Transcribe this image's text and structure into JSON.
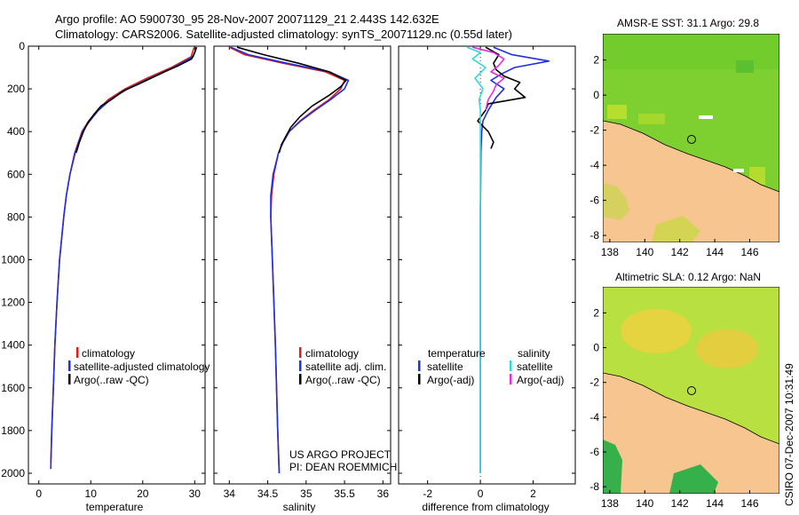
{
  "figure": {
    "title_line1": "Argo profile: AO 5900730_95 28-Nov-2007 20071129_21 2.443S 142.632E",
    "title_line2": "Climatology: CARS2006. Satellite-adjusted climatology: synTS_20071129.nc (0.55d later)",
    "project_line1": "US ARGO PROJECT",
    "project_line2": "PI: DEAN ROEMMICH",
    "stamp": "CSIRO 07-Dec-2007 10:31:49"
  },
  "colors": {
    "climatology": "#d42020",
    "satellite": "#2030e0",
    "argo": "#000000",
    "satellite_salinity": "#30d8d8",
    "argo_salinity_adj": "#e030e0",
    "land": "#f7c590",
    "sea_green": "#7ed030"
  },
  "chart_data": [
    {
      "type": "line",
      "name": "temperature-profile",
      "xlabel": "temperature",
      "xlim": [
        -2,
        32
      ],
      "xticks": [
        0,
        10,
        20,
        30
      ],
      "ylim": [
        0,
        2050
      ],
      "yticks": [
        0,
        200,
        400,
        600,
        800,
        1000,
        1200,
        1400,
        1600,
        1800,
        2000
      ],
      "y_reversed": true,
      "legend": [
        "climatology",
        "satellite-adjusted climatology",
        "Argo(..raw -QC)"
      ],
      "series": [
        {
          "name": "climatology",
          "depth": [
            5,
            50,
            100,
            150,
            200,
            250,
            300,
            350,
            400,
            500,
            600,
            700,
            800,
            1000,
            1200,
            1400,
            1600,
            1800,
            1950
          ],
          "values": [
            29.9,
            29.3,
            25.5,
            20.8,
            16.6,
            13.4,
            11.3,
            9.6,
            8.3,
            6.9,
            6.0,
            5.3,
            4.8,
            4.0,
            3.5,
            3.1,
            2.8,
            2.5,
            2.3
          ]
        },
        {
          "name": "satellite-adjusted climatology",
          "depth": [
            5,
            50,
            100,
            150,
            200,
            250,
            300,
            350,
            400,
            500,
            600,
            700,
            800,
            1000,
            1200,
            1400,
            1600,
            1800,
            1980
          ],
          "values": [
            30.4,
            29.7,
            26.0,
            21.4,
            17.1,
            13.8,
            11.5,
            9.8,
            8.4,
            7.0,
            6.0,
            5.3,
            4.8,
            4.0,
            3.5,
            3.1,
            2.8,
            2.5,
            2.3
          ]
        },
        {
          "name": "Argo(..raw -QC)",
          "depth": [
            5,
            30,
            60,
            90,
            120,
            150,
            180,
            210,
            250,
            280,
            320,
            360,
            400,
            450,
            500
          ],
          "values": [
            30.3,
            30.0,
            29.4,
            27.0,
            24.2,
            21.6,
            19.0,
            16.2,
            14.0,
            12.0,
            10.6,
            9.4,
            8.6,
            7.8,
            7.2
          ]
        }
      ]
    },
    {
      "type": "line",
      "name": "salinity-profile",
      "xlabel": "salinity",
      "xlim": [
        33.8,
        36.1
      ],
      "xticks": [
        34,
        34.5,
        35,
        35.5,
        36
      ],
      "ylim": [
        0,
        2050
      ],
      "y_reversed": true,
      "legend": [
        "climatology",
        "satellite adj. clim.",
        "Argo(..raw -QC)"
      ],
      "series": [
        {
          "name": "climatology",
          "depth": [
            5,
            40,
            80,
            120,
            160,
            200,
            250,
            300,
            350,
            400,
            450,
            500,
            600,
            700,
            800,
            1000,
            1400,
            1800,
            2000
          ],
          "values": [
            34.0,
            34.2,
            34.7,
            35.25,
            35.5,
            35.45,
            35.3,
            35.1,
            34.92,
            34.78,
            34.7,
            34.64,
            34.58,
            34.55,
            34.54,
            34.56,
            34.6,
            34.63,
            34.65
          ]
        },
        {
          "name": "satellite adj. clim.",
          "depth": [
            5,
            40,
            80,
            120,
            160,
            200,
            250,
            300,
            350,
            400,
            450,
            500,
            600,
            700,
            800,
            1000,
            1400,
            1800,
            2000
          ],
          "values": [
            34.02,
            34.25,
            34.75,
            35.3,
            35.55,
            35.5,
            35.32,
            35.12,
            34.93,
            34.78,
            34.7,
            34.64,
            34.57,
            34.54,
            34.54,
            34.56,
            34.6,
            34.63,
            34.65
          ]
        },
        {
          "name": "Argo(..raw -QC)",
          "depth": [
            5,
            40,
            80,
            120,
            160,
            190,
            230,
            280,
            330,
            380,
            420,
            460,
            500
          ],
          "values": [
            34.1,
            34.45,
            34.9,
            35.3,
            35.52,
            35.45,
            35.3,
            35.08,
            34.92,
            34.8,
            34.74,
            34.68,
            34.65
          ]
        }
      ]
    },
    {
      "type": "line",
      "name": "difference-profile",
      "xlabel": "difference from climatology",
      "xlim": [
        -3.1,
        3.6
      ],
      "xticks": [
        -2,
        0,
        2
      ],
      "ylim": [
        0,
        2050
      ],
      "y_reversed": true,
      "legend_left_title": "temperature",
      "legend_left": [
        "satellite",
        "Argo(-adj)"
      ],
      "legend_right_title": "salinity",
      "legend_right": [
        "satellite",
        "Argo(-adj)"
      ],
      "series": [
        {
          "name": "temperature satellite",
          "depth": [
            5,
            40,
            70,
            100,
            130,
            160,
            200,
            240,
            300,
            350,
            400,
            500,
            800,
            1200,
            1600,
            2000
          ],
          "values": [
            0.5,
            1.2,
            2.6,
            1.3,
            0.8,
            0.4,
            0.9,
            0.6,
            0.3,
            0.1,
            0.05,
            0.02,
            0.0,
            0.0,
            0.0,
            0.0
          ]
        },
        {
          "name": "temperature Argo(-adj)",
          "depth": [
            5,
            40,
            80,
            110,
            140,
            170,
            200,
            240,
            270,
            300,
            350,
            400,
            450,
            480
          ],
          "values": [
            0.2,
            0.7,
            0.5,
            0.6,
            0.9,
            1.5,
            1.3,
            1.7,
            0.3,
            0.2,
            -0.1,
            0.3,
            0.5,
            0.4
          ]
        },
        {
          "name": "salinity satellite",
          "depth": [
            5,
            30,
            60,
            100,
            150,
            200,
            250,
            300,
            400,
            500,
            1000,
            2000
          ],
          "values": [
            -0.5,
            0.0,
            -0.3,
            0.2,
            -0.2,
            0.1,
            -0.05,
            0.0,
            0.0,
            0.0,
            0.0,
            0.0
          ]
        },
        {
          "name": "salinity Argo(-adj)",
          "depth": [
            5,
            30,
            60,
            90,
            120,
            150,
            180,
            210,
            250,
            300
          ],
          "values": [
            -0.3,
            0.5,
            0.9,
            0.7,
            0.4,
            0.9,
            0.6,
            0.5,
            0.3,
            0.2
          ]
        }
      ]
    },
    {
      "type": "heatmap",
      "name": "amsre-sst-map",
      "title": "AMSR-E SST: 31.1 Argo: 29.8",
      "xlim": [
        137.6,
        147.7
      ],
      "ylim": [
        -8.4,
        3.5
      ],
      "xticks": [
        138,
        140,
        142,
        144,
        146
      ],
      "yticks": [
        2,
        0,
        -2,
        -4,
        -6,
        -8
      ],
      "argo_location": {
        "lon": 142.632,
        "lat": -2.443
      }
    },
    {
      "type": "heatmap",
      "name": "altimetric-sla-map",
      "title": "Altimetric SLA: 0.12 Argo: NaN",
      "xlim": [
        137.6,
        147.7
      ],
      "ylim": [
        -8.4,
        3.5
      ],
      "xticks": [
        138,
        140,
        142,
        144,
        146
      ],
      "yticks": [
        2,
        0,
        -2,
        -4,
        -6,
        -8
      ],
      "argo_location": {
        "lon": 142.632,
        "lat": -2.443
      }
    }
  ]
}
